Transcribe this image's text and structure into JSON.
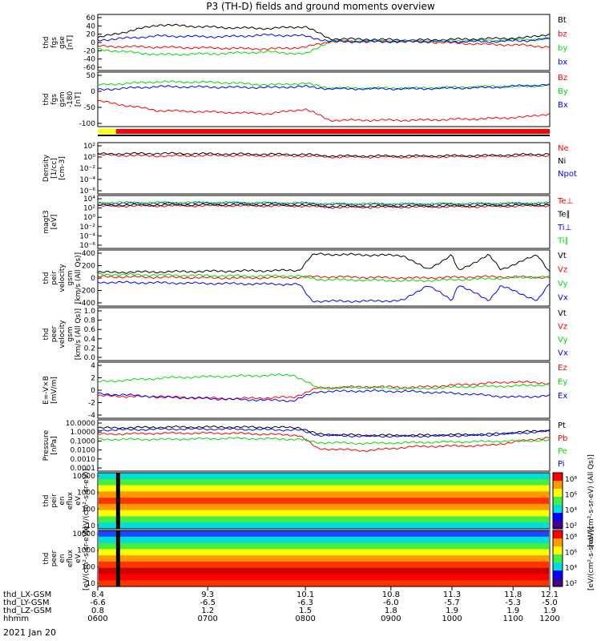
{
  "title": "P3 (TH-D) fields and ground moments overview",
  "date_label": "2021 Jan 20",
  "colors": {
    "black": "#000000",
    "red": "#ff0000",
    "green": "#00dd00",
    "blue": "#0000ff",
    "yellow": "#ffff00",
    "cyan": "#00dddd",
    "orange": "#ff9900"
  },
  "chart_data": [
    {
      "id": "fgs-gse",
      "type": "line",
      "ylabel": [
        "thd",
        "fgs",
        "gse",
        "[nT]"
      ],
      "yticks": [
        "60",
        "40",
        "20",
        "0",
        "-20",
        "-40",
        "-60"
      ],
      "ylim": [
        -60,
        60
      ],
      "series": [
        {
          "name": "Bt",
          "color": "#000000",
          "x": [
            8.4,
            8.9,
            9.4,
            9.8,
            10.1,
            10.3,
            11.0,
            11.6,
            11.9,
            12.1
          ],
          "values": [
            10,
            38,
            32,
            30,
            34,
            8,
            5,
            8,
            10,
            18
          ]
        },
        {
          "name": "bz",
          "color": "#ff0000",
          "x": [
            8.4,
            8.9,
            9.4,
            9.8,
            10.1,
            10.3,
            11.0,
            11.6,
            11.9,
            12.1
          ],
          "values": [
            -8,
            -10,
            -12,
            -14,
            -10,
            2,
            2,
            -4,
            -6,
            -10
          ]
        },
        {
          "name": "by",
          "color": "#00dd00",
          "x": [
            8.4,
            8.9,
            9.4,
            9.8,
            10.1,
            10.3,
            11.0,
            11.6,
            11.9,
            12.1
          ],
          "values": [
            -15,
            -26,
            -24,
            -20,
            -25,
            3,
            3,
            4,
            6,
            8
          ]
        },
        {
          "name": "bx",
          "color": "#0000ff",
          "x": [
            8.4,
            8.9,
            9.4,
            9.8,
            10.1,
            10.3,
            11.0,
            11.6,
            11.9,
            12.1
          ],
          "values": [
            5,
            14,
            12,
            16,
            14,
            2,
            2,
            2,
            4,
            8
          ]
        }
      ]
    },
    {
      "id": "fgs-gsm",
      "type": "line",
      "ylabel": [
        "thd",
        "fgs",
        "gsm",
        "-180",
        "[nT]"
      ],
      "yticks": [
        "50",
        "0",
        "-50",
        "-100"
      ],
      "ylim": [
        -120,
        50
      ],
      "series": [
        {
          "name": "Bz",
          "color": "#ff0000",
          "x": [
            8.4,
            8.9,
            9.4,
            9.8,
            10.1,
            10.3,
            11.0,
            11.6,
            11.9,
            12.1
          ],
          "values": [
            -40,
            -70,
            -75,
            -80,
            -65,
            -100,
            -100,
            -95,
            -90,
            -80
          ]
        },
        {
          "name": "By",
          "color": "#00dd00",
          "x": [
            8.4,
            8.9,
            9.4,
            9.8,
            10.1,
            10.3,
            11.0,
            11.6,
            11.9,
            12.1
          ],
          "values": [
            10,
            20,
            18,
            10,
            15,
            0,
            0,
            5,
            5,
            10
          ]
        },
        {
          "name": "Bx",
          "color": "#0000ff",
          "x": [
            8.4,
            8.9,
            9.4,
            9.8,
            10.1,
            10.3,
            11.0,
            11.6,
            11.9,
            12.1
          ],
          "values": [
            -5,
            5,
            3,
            2,
            5,
            -2,
            -2,
            2,
            8,
            10
          ]
        }
      ]
    },
    {
      "id": "density",
      "type": "line",
      "log": true,
      "ylabel": [
        "Density",
        "[1/cc]",
        "[cm-3]"
      ],
      "yticks": [
        "10²",
        "10⁰",
        "10⁻²",
        "10⁻⁴",
        "10⁻⁶"
      ],
      "ylim": [
        -7,
        3
      ],
      "series": [
        {
          "name": "Ne",
          "color": "#ff0000",
          "x": [
            8.4,
            8.9,
            9.4,
            10.1,
            10.3,
            11.0,
            11.6,
            12.1
          ],
          "values": [
            0.6,
            0.4,
            0.5,
            0.4,
            0.2,
            0.2,
            0.3,
            0.5
          ]
        },
        {
          "name": "Ni",
          "color": "#000000",
          "x": [
            8.4,
            8.9,
            9.4,
            10.1,
            10.3,
            11.0,
            11.6,
            12.1
          ],
          "values": [
            0.8,
            0.9,
            0.8,
            0.7,
            0.4,
            0.4,
            0.5,
            0.8
          ]
        },
        {
          "name": "Npot",
          "color": "#0000ff",
          "x": [],
          "values": []
        }
      ]
    },
    {
      "id": "temperature",
      "type": "line",
      "log": true,
      "ylabel": [
        "magt3",
        "[eV]"
      ],
      "yticks": [
        "10⁴",
        "10²",
        "10⁰",
        "10⁻²",
        "10⁻⁴",
        "10⁻⁶"
      ],
      "ylim": [
        -7,
        5
      ],
      "series": [
        {
          "name": "Te⊥",
          "color": "#ff0000",
          "x": [
            8.4,
            9.4,
            10.1,
            10.3,
            11.0,
            11.6,
            12.1
          ],
          "values": [
            2.6,
            2.7,
            2.6,
            2.3,
            2.4,
            2.5,
            2.7
          ]
        },
        {
          "name": "Te∥",
          "color": "#000000",
          "x": [
            8.4,
            9.4,
            10.1,
            10.3,
            11.0,
            11.6,
            12.1
          ],
          "values": [
            2.8,
            2.9,
            2.8,
            2.5,
            2.6,
            2.7,
            2.9
          ]
        },
        {
          "name": "Ti⊥",
          "color": "#0000ff",
          "x": [
            8.4,
            9.4,
            10.1,
            10.3,
            11.0,
            11.6,
            12.1
          ],
          "values": [
            3.2,
            3.3,
            3.2,
            3.0,
            3.0,
            3.1,
            3.2
          ]
        },
        {
          "name": "Ti∥",
          "color": "#00dd00",
          "x": [
            8.4,
            9.4,
            10.1,
            10.3,
            11.0,
            11.6,
            12.1
          ],
          "values": [
            3.4,
            3.4,
            3.3,
            3.1,
            3.1,
            3.2,
            3.3
          ]
        }
      ]
    },
    {
      "id": "ion-velocity",
      "type": "line",
      "ylabel": [
        "thd",
        "peir",
        "velocity",
        "gsm",
        "[km/s (All Qs)]"
      ],
      "yticks": [
        "400",
        "200",
        "0",
        "-200",
        "-400"
      ],
      "ylim": [
        -400,
        400
      ],
      "series": [
        {
          "name": "Vt",
          "color": "#000000",
          "x": [
            8.4,
            9.0,
            9.5,
            10.05,
            10.15,
            10.2,
            10.6,
            10.9,
            11.1,
            11.3,
            11.35,
            11.6,
            11.7,
            12.0,
            12.1
          ],
          "values": [
            80,
            90,
            100,
            110,
            320,
            340,
            330,
            320,
            120,
            330,
            100,
            330,
            120,
            330,
            90
          ]
        },
        {
          "name": "Vz",
          "color": "#ff0000",
          "x": [
            8.4,
            9.0,
            9.5,
            10.05,
            10.2,
            10.6,
            11.0,
            11.6,
            12.1
          ],
          "values": [
            20,
            10,
            0,
            10,
            20,
            10,
            0,
            20,
            10
          ]
        },
        {
          "name": "Vy",
          "color": "#00dd00",
          "x": [
            8.4,
            9.0,
            9.5,
            10.05,
            10.2,
            10.6,
            11.0,
            11.6,
            12.1
          ],
          "values": [
            50,
            40,
            30,
            30,
            -20,
            -30,
            -40,
            -10,
            20
          ]
        },
        {
          "name": "Vx",
          "color": "#0000ff",
          "x": [
            8.4,
            9.0,
            9.5,
            10.05,
            10.15,
            10.2,
            10.6,
            10.9,
            11.1,
            11.3,
            11.35,
            11.6,
            11.7,
            12.0,
            12.1
          ],
          "values": [
            -60,
            -70,
            -80,
            -90,
            -320,
            -330,
            -330,
            -320,
            -100,
            -320,
            -90,
            -320,
            -110,
            -320,
            -80
          ]
        }
      ]
    },
    {
      "id": "electron-velocity",
      "type": "line",
      "ylabel": [
        "thd",
        "peer",
        "velocity",
        "gsm",
        "[km/s (All Qs)]"
      ],
      "yticks": [
        "1.0",
        "0.8",
        "0.6",
        "0.4",
        "0.2",
        "0.0"
      ],
      "ylim": [
        0,
        1
      ],
      "series": [
        {
          "name": "Vt",
          "color": "#000000",
          "x": [],
          "values": []
        },
        {
          "name": "Vz",
          "color": "#ff0000",
          "x": [],
          "values": []
        },
        {
          "name": "Vy",
          "color": "#00dd00",
          "x": [],
          "values": []
        },
        {
          "name": "Vx",
          "color": "#0000ff",
          "x": [],
          "values": []
        }
      ]
    },
    {
      "id": "e-field",
      "type": "line",
      "ylabel": [
        "E=-V×B",
        "[mV/m]"
      ],
      "yticks": [
        "4",
        "2",
        "0",
        "-2",
        "-4"
      ],
      "ylim": [
        -4,
        4
      ],
      "series": [
        {
          "name": "Ez",
          "color": "#ff0000",
          "x": [
            8.4,
            9.0,
            9.5,
            10.0,
            10.2,
            10.6,
            11.0,
            11.4,
            11.8,
            12.1
          ],
          "values": [
            -0.8,
            -1.0,
            -1.2,
            -1.0,
            0.3,
            0.5,
            0.4,
            0.8,
            1.2,
            1.0
          ]
        },
        {
          "name": "Ey",
          "color": "#00dd00",
          "x": [
            8.4,
            9.0,
            9.5,
            10.0,
            10.2,
            10.6,
            11.0,
            11.4,
            11.8,
            12.1
          ],
          "values": [
            1.2,
            1.8,
            2.0,
            2.2,
            0.3,
            0.4,
            0.2,
            0.5,
            0.6,
            0.8
          ]
        },
        {
          "name": "Ex",
          "color": "#0000ff",
          "x": [
            8.4,
            9.0,
            9.5,
            10.0,
            10.2,
            10.6,
            11.0,
            11.4,
            11.8,
            12.1
          ],
          "values": [
            -0.5,
            -1.0,
            -1.3,
            -1.5,
            -0.2,
            -0.1,
            -0.2,
            -0.5,
            -1.0,
            -0.8
          ]
        }
      ]
    },
    {
      "id": "pressure",
      "type": "line",
      "log": true,
      "ylabel": [
        "Pressure",
        "[nPa]"
      ],
      "yticks": [
        "10.0000",
        "1.0000",
        "0.1000",
        "0.0100",
        "0.0010",
        "0.0001"
      ],
      "ylim": [
        -4,
        1
      ],
      "series": [
        {
          "name": "Pt",
          "color": "#000000",
          "x": [
            8.4,
            9.0,
            9.5,
            10.05,
            10.2,
            10.6,
            11.0,
            11.6,
            12.1
          ],
          "values": [
            0.2,
            0.3,
            0.3,
            0.25,
            -0.4,
            -0.5,
            -0.5,
            -0.4,
            0.0
          ]
        },
        {
          "name": "Pb",
          "color": "#ff0000",
          "x": [
            8.4,
            9.0,
            9.5,
            10.05,
            10.2,
            10.6,
            11.0,
            11.6,
            12.1
          ],
          "values": [
            -0.4,
            -0.3,
            -0.3,
            -0.5,
            -1.8,
            -2.0,
            -1.6,
            -1.5,
            -0.7
          ]
        },
        {
          "name": "Pe",
          "color": "#00dd00",
          "x": [
            8.4,
            9.0,
            9.5,
            10.05,
            10.2,
            10.6,
            11.0,
            11.6,
            12.1
          ],
          "values": [
            -0.9,
            -0.9,
            -0.8,
            -0.9,
            -1.2,
            -1.3,
            -1.2,
            -1.1,
            -1.0
          ]
        },
        {
          "name": "Pi",
          "color": "#0000ff",
          "x": [
            8.4,
            9.0,
            9.5,
            10.05,
            10.2,
            10.6,
            11.0,
            11.6,
            12.1
          ],
          "values": [
            0.0,
            0.1,
            0.1,
            0.0,
            -0.5,
            -0.6,
            -0.6,
            -0.5,
            -0.1
          ]
        }
      ]
    },
    {
      "id": "ion-spectrogram",
      "type": "heatmap",
      "ylabel": [
        "thd",
        "peir",
        "en",
        "eflux",
        "eV",
        "[eV/(cm²-s-sr-eV)]"
      ],
      "yticks": [
        "10000",
        "1000",
        "100",
        "10"
      ],
      "ylim": [
        5,
        25000
      ],
      "colorbar_label": "[eV/(cm²-s-sr-eV) (All Qs)]",
      "colorbar_ticks": [
        "10⁸",
        "10⁶",
        "10⁴",
        "10²"
      ]
    },
    {
      "id": "electron-spectrogram",
      "type": "heatmap",
      "ylabel": [
        "thd",
        "peer",
        "en",
        "eflux",
        "eV",
        "[eV/(cm²-s-sr-eV)]"
      ],
      "yticks": [
        "10000",
        "1000",
        "100",
        "10"
      ],
      "ylim": [
        5,
        25000
      ],
      "colorbar_label": "[eV/(cm²-s-sr-eV)]",
      "colorbar_ticks": [
        "10⁸",
        "10⁶",
        "10⁴",
        "10²"
      ]
    }
  ],
  "xaxis": {
    "row_labels": [
      "thd_LX-GSM",
      "thd_LY-GSM",
      "thd_LZ-GSM",
      "hhmm"
    ],
    "ticks": [
      {
        "x": 8.4,
        "lx": "8.4",
        "ly": "-6.6",
        "lz": "0.8",
        "hhmm": "0600"
      },
      {
        "x": 9.3,
        "lx": "9.3",
        "ly": "-6.5",
        "lz": "1.2",
        "hhmm": "0700"
      },
      {
        "x": 10.1,
        "lx": "10.1",
        "ly": "-6.3",
        "lz": "1.5",
        "hhmm": "0800"
      },
      {
        "x": 10.8,
        "lx": "10.8",
        "ly": "-6.0",
        "lz": "1.8",
        "hhmm": "0900"
      },
      {
        "x": 11.3,
        "lx": "11.3",
        "ly": "-5.7",
        "lz": "1.9",
        "hhmm": "1000"
      },
      {
        "x": 11.8,
        "lx": "11.8",
        "ly": "-5.3",
        "lz": "1.9",
        "hhmm": "1100"
      },
      {
        "x": 12.1,
        "lx": "12.1",
        "ly": "-5.0",
        "lz": "1.9",
        "hhmm": "1200"
      }
    ]
  }
}
